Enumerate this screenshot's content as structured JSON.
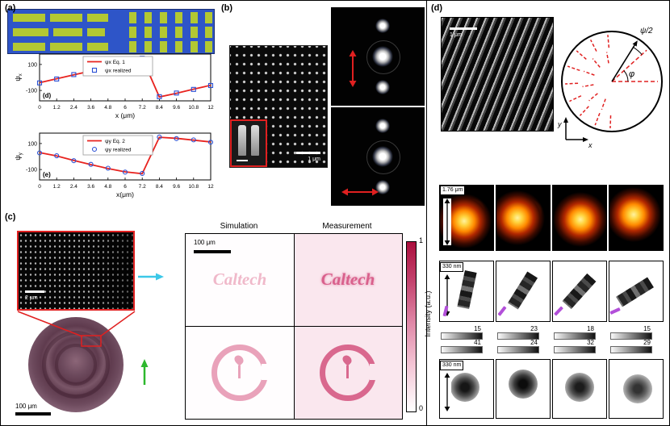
{
  "panel_a": {
    "label": "(a)"
  },
  "panel_b": {
    "label": "(b)",
    "sem_scalebar": "1 μm"
  },
  "panel_c": {
    "label": "(c)",
    "inset_scalebar": "2 μm",
    "micrograph_scalebar": "100 μm",
    "cell_scalebar": "100 μm",
    "column_headers": {
      "simulation": "Simulation",
      "measurement": "Measurement"
    },
    "caltech_text": "Caltech",
    "colorbar": {
      "max": "1",
      "min": "0",
      "label": "Intensity (a.u.)"
    }
  },
  "panel_d": {
    "label": "(d)",
    "sem_scalebar": "1 μm",
    "circle_labels": {
      "psi_half": "ψ/2",
      "phi": "φ",
      "x_axis": "x",
      "y_axis": "y"
    },
    "row1_height_label": "1.76 μm",
    "row2_height_label": "330 nm",
    "row3_height_label": "330 nm",
    "scale_numbers_top": [
      "15",
      "23",
      "18",
      "15"
    ],
    "scale_numbers_bottom": [
      "41",
      "24",
      "32",
      "29"
    ]
  },
  "chart_data": [
    {
      "type": "line",
      "xlabel": "x (μm)",
      "ylabel": "ψx",
      "x": [
        0,
        1.2,
        2.4,
        3.6,
        4.8,
        6,
        7.2,
        8.4,
        9.6,
        10.8,
        12
      ],
      "xtick_labels": [
        "0",
        "1.2",
        "2.4",
        "3.6",
        "4.8",
        "6",
        "7.2",
        "8.4",
        "9.6",
        "10.8",
        "12"
      ],
      "ylim": [
        -180,
        180
      ],
      "yticks": [
        {
          "v": 100,
          "label": "100"
        },
        {
          "v": -100,
          "label": "-100"
        }
      ],
      "inner_label": "(d)",
      "legend_position": "upper-center",
      "grid": false,
      "series": [
        {
          "name": "ψx Eq. 1",
          "type": "line",
          "color": "#e8231f",
          "values": [
            -40,
            -10,
            20,
            50,
            82,
            115,
            150,
            -150,
            -122,
            -90,
            -60
          ]
        },
        {
          "name": "ψx realized",
          "type": "scatter",
          "marker": "square",
          "color": "#2a4fd4",
          "values": [
            -42,
            -12,
            22,
            48,
            80,
            117,
            148,
            -148,
            -120,
            -92,
            -62
          ]
        }
      ]
    },
    {
      "type": "line",
      "xlabel": "x(μm)",
      "ylabel": "ψy",
      "x": [
        0,
        1.2,
        2.4,
        3.6,
        4.8,
        6,
        7.2,
        8.4,
        9.6,
        10.8,
        12
      ],
      "xtick_labels": [
        "0",
        "1.2",
        "2.4",
        "3.6",
        "4.8",
        "6",
        "7.2",
        "8.4",
        "9.6",
        "10.8",
        "12"
      ],
      "ylim": [
        -180,
        180
      ],
      "yticks": [
        {
          "v": 100,
          "label": "100"
        },
        {
          "v": -100,
          "label": "-100"
        }
      ],
      "inner_label": "(e)",
      "legend_position": "upper-center",
      "grid": false,
      "series": [
        {
          "name": "ψy Eq. 2",
          "type": "line",
          "color": "#e8231f",
          "values": [
            30,
            5,
            -30,
            -62,
            -92,
            -118,
            -132,
            148,
            140,
            126,
            112
          ]
        },
        {
          "name": "ψy realized",
          "type": "scatter",
          "marker": "circle",
          "color": "#2a4fd4",
          "values": [
            28,
            6,
            -32,
            -60,
            -90,
            -120,
            -130,
            150,
            138,
            128,
            110
          ]
        }
      ]
    }
  ]
}
